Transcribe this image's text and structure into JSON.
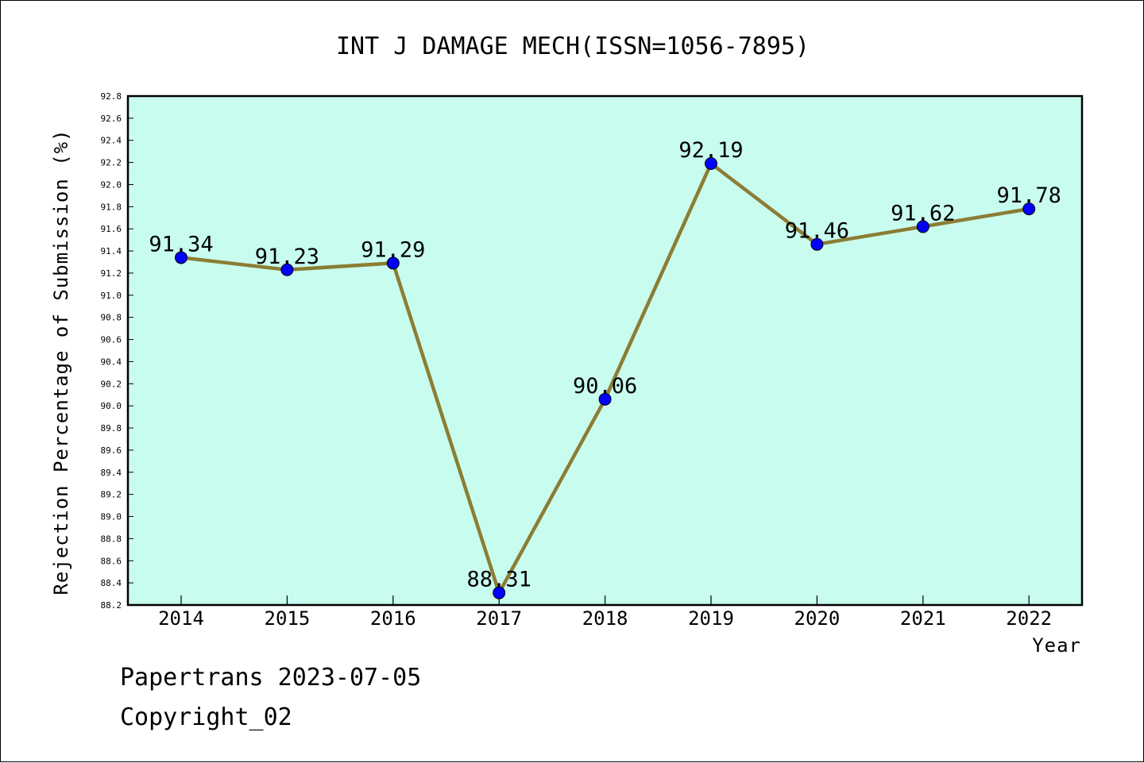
{
  "chart_data": {
    "type": "line",
    "title": "INT J DAMAGE MECH(ISSN=1056-7895)",
    "xlabel": "Year",
    "ylabel": "Rejection Percentage of Submission (%)",
    "categories": [
      "2014",
      "2015",
      "2016",
      "2017",
      "2018",
      "2019",
      "2020",
      "2021",
      "2022"
    ],
    "values": [
      91.34,
      91.23,
      91.29,
      88.31,
      90.06,
      92.19,
      91.46,
      91.62,
      91.78
    ],
    "data_labels": [
      "91.34",
      "91.23",
      "91.29",
      "88.31",
      "90.06",
      "92.19",
      "91.46",
      "91.62",
      "91.78"
    ],
    "ylim": [
      88.2,
      92.8
    ],
    "yticks": [
      "88.2",
      "88.4",
      "88.6",
      "88.8",
      "89.0",
      "89.2",
      "89.4",
      "89.6",
      "89.8",
      "90.0",
      "90.2",
      "90.4",
      "90.6",
      "90.8",
      "91.0",
      "91.2",
      "91.4",
      "91.6",
      "91.8",
      "92.0",
      "92.2",
      "92.4",
      "92.6",
      "92.8"
    ],
    "grid": false,
    "colors": {
      "plot_background": "#c8fcee",
      "line": "#8b7d35",
      "marker": "#0000ff"
    }
  },
  "footer": {
    "line1": "Papertrans 2023-07-05",
    "line2": "Copyright_02"
  }
}
